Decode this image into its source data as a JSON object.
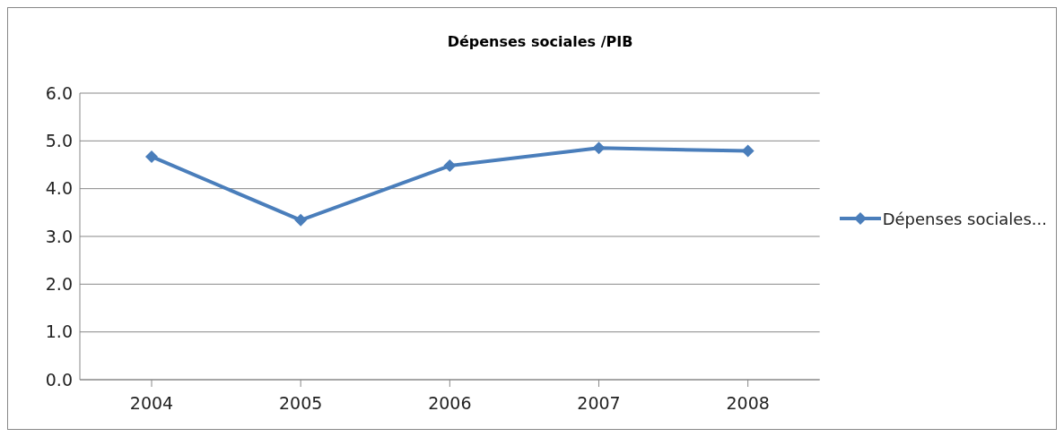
{
  "chart_data": {
    "type": "line",
    "title": "Dépenses sociales /PIB",
    "categories": [
      "2004",
      "2005",
      "2006",
      "2007",
      "2008"
    ],
    "series": [
      {
        "name": "Dépenses sociales...",
        "color": "#4a7ebb",
        "values": [
          4.67,
          3.34,
          4.48,
          4.85,
          4.79
        ]
      }
    ],
    "ylim": [
      0,
      6
    ],
    "yticks": [
      {
        "value": 0,
        "label": "0.0"
      },
      {
        "value": 1,
        "label": "1.0"
      },
      {
        "value": 2,
        "label": "2.0"
      },
      {
        "value": 3,
        "label": "3.0"
      },
      {
        "value": 4,
        "label": "4.0"
      },
      {
        "value": 5,
        "label": "5.0"
      },
      {
        "value": 6,
        "label": "6.0"
      }
    ],
    "grid": "y",
    "legend": "right",
    "marker": "diamond",
    "line_style": "solid"
  }
}
